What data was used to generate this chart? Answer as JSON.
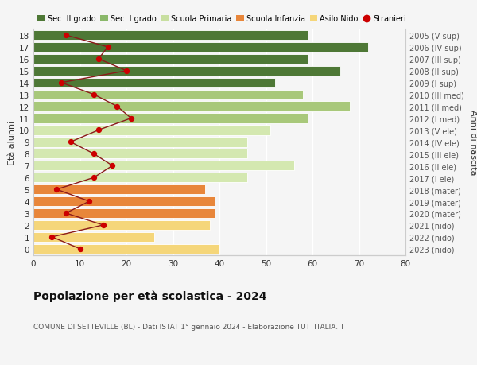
{
  "ages": [
    0,
    1,
    2,
    3,
    4,
    5,
    6,
    7,
    8,
    9,
    10,
    11,
    12,
    13,
    14,
    15,
    16,
    17,
    18
  ],
  "right_labels": [
    "2023 (nido)",
    "2022 (nido)",
    "2021 (nido)",
    "2020 (mater)",
    "2019 (mater)",
    "2018 (mater)",
    "2017 (I ele)",
    "2016 (II ele)",
    "2015 (III ele)",
    "2014 (IV ele)",
    "2013 (V ele)",
    "2012 (I med)",
    "2011 (II med)",
    "2010 (III med)",
    "2009 (I sup)",
    "2008 (II sup)",
    "2007 (III sup)",
    "2006 (IV sup)",
    "2005 (V sup)"
  ],
  "bar_values": [
    40,
    26,
    38,
    39,
    39,
    37,
    46,
    56,
    46,
    46,
    51,
    59,
    68,
    58,
    52,
    66,
    59,
    72,
    59
  ],
  "bar_colors": [
    "#f5d67a",
    "#f5d67a",
    "#f5d67a",
    "#e8863a",
    "#e8863a",
    "#e8863a",
    "#d4e8b0",
    "#d4e8b0",
    "#d4e8b0",
    "#d4e8b0",
    "#d4e8b0",
    "#a8c87a",
    "#a8c87a",
    "#a8c87a",
    "#4e7836",
    "#4e7836",
    "#4e7836",
    "#4e7836",
    "#4e7836"
  ],
  "stranieri_values": [
    10,
    4,
    15,
    7,
    12,
    5,
    13,
    17,
    13,
    8,
    14,
    21,
    18,
    13,
    6,
    20,
    14,
    16,
    7
  ],
  "legend_labels": [
    "Sec. II grado",
    "Sec. I grado",
    "Scuola Primaria",
    "Scuola Infanzia",
    "Asilo Nido",
    "Stranieri"
  ],
  "legend_colors": [
    "#4e7836",
    "#8ab86a",
    "#c8dfa0",
    "#e8863a",
    "#f5d67a",
    "#cc0000"
  ],
  "title": "Popolazione per età scolastica - 2024",
  "subtitle": "COMUNE DI SETTEVILLE (BL) - Dati ISTAT 1° gennaio 2024 - Elaborazione TUTTITALIA.IT",
  "ylabel_left": "Età alunni",
  "ylabel_right": "Anni di nascita",
  "xlim": [
    0,
    80
  ],
  "background_color": "#f5f5f5",
  "bar_height": 0.82,
  "grid_color": "#ffffff",
  "tick_color": "#888888",
  "spine_color": "#cccccc"
}
